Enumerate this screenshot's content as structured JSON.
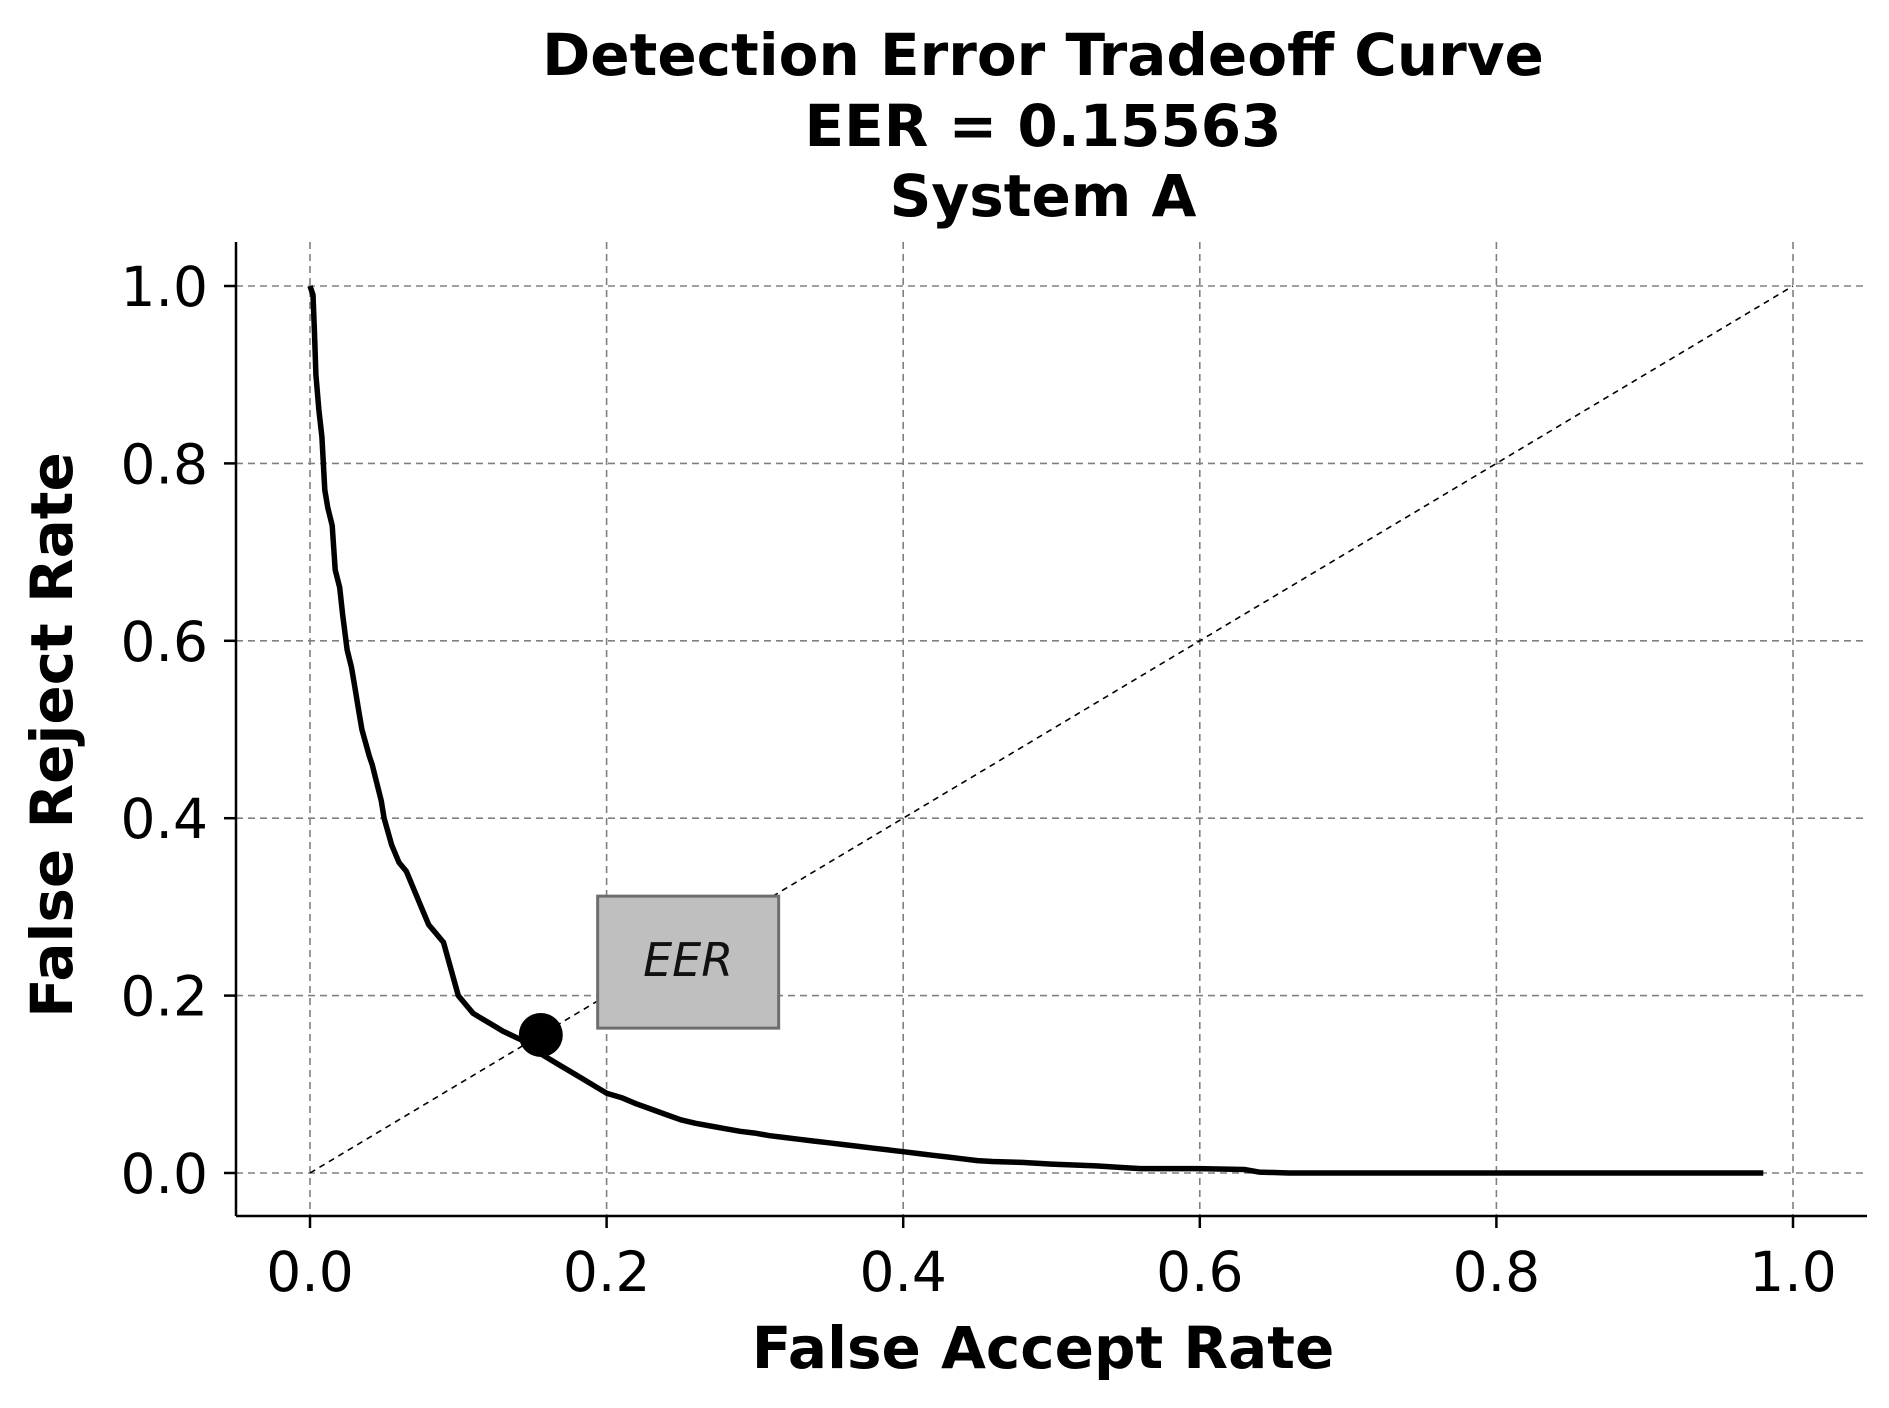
{
  "chart_data": {
    "type": "line",
    "title": [
      "Detection Error Tradeoff Curve",
      "EER = 0.15563",
      "System A"
    ],
    "xlabel": "False Accept Rate",
    "ylabel": "False Reject Rate",
    "xlim": [
      -0.05,
      1.05
    ],
    "ylim": [
      -0.05,
      1.05
    ],
    "xticks": [
      0.0,
      0.2,
      0.4,
      0.6,
      0.8,
      1.0
    ],
    "yticks": [
      0.0,
      0.2,
      0.4,
      0.6,
      0.8,
      1.0
    ],
    "tick_labels_x": [
      "0.0",
      "0.2",
      "0.4",
      "0.6",
      "0.8",
      "1.0"
    ],
    "tick_labels_y": [
      "0.0",
      "0.2",
      "0.4",
      "0.6",
      "0.8",
      "1.0"
    ],
    "grid": true,
    "series": [
      {
        "style": "solid",
        "color": "#000000",
        "x": [
          0.0,
          0.002,
          0.003,
          0.004,
          0.006,
          0.008,
          0.01,
          0.012,
          0.015,
          0.017,
          0.02,
          0.022,
          0.025,
          0.028,
          0.03,
          0.033,
          0.035,
          0.04,
          0.042,
          0.045,
          0.048,
          0.05,
          0.055,
          0.06,
          0.065,
          0.07,
          0.075,
          0.08,
          0.085,
          0.09,
          0.095,
          0.1,
          0.105,
          0.11,
          0.115,
          0.12,
          0.125,
          0.13,
          0.135,
          0.14,
          0.145,
          0.15,
          0.155,
          0.16,
          0.17,
          0.18,
          0.19,
          0.2,
          0.21,
          0.22,
          0.23,
          0.24,
          0.25,
          0.26,
          0.27,
          0.28,
          0.29,
          0.3,
          0.31,
          0.32,
          0.33,
          0.34,
          0.35,
          0.36,
          0.37,
          0.38,
          0.39,
          0.4,
          0.41,
          0.42,
          0.43,
          0.44,
          0.45,
          0.46,
          0.48,
          0.5,
          0.53,
          0.55,
          0.56,
          0.58,
          0.6,
          0.63,
          0.64,
          0.66,
          0.7,
          0.8,
          0.9,
          0.98
        ],
        "y": [
          1.0,
          0.99,
          0.95,
          0.9,
          0.86,
          0.83,
          0.77,
          0.75,
          0.73,
          0.68,
          0.66,
          0.63,
          0.59,
          0.57,
          0.55,
          0.52,
          0.5,
          0.47,
          0.46,
          0.44,
          0.42,
          0.4,
          0.37,
          0.35,
          0.34,
          0.32,
          0.3,
          0.28,
          0.27,
          0.26,
          0.23,
          0.2,
          0.19,
          0.18,
          0.175,
          0.17,
          0.165,
          0.16,
          0.156,
          0.152,
          0.148,
          0.14,
          0.135,
          0.13,
          0.12,
          0.11,
          0.1,
          0.09,
          0.085,
          0.078,
          0.072,
          0.066,
          0.06,
          0.056,
          0.053,
          0.05,
          0.047,
          0.045,
          0.042,
          0.04,
          0.038,
          0.036,
          0.034,
          0.032,
          0.03,
          0.028,
          0.026,
          0.024,
          0.022,
          0.02,
          0.018,
          0.016,
          0.014,
          0.013,
          0.012,
          0.01,
          0.008,
          0.006,
          0.005,
          0.005,
          0.005,
          0.004,
          0.001,
          0.0,
          0.0,
          0.0,
          0.0,
          0.0
        ]
      },
      {
        "style": "dashed",
        "color": "#000000",
        "x": [
          0.0,
          1.0
        ],
        "y": [
          0.0,
          1.0
        ]
      }
    ],
    "eer_point": {
      "x": 0.15563,
      "y": 0.15563
    },
    "annotation": {
      "text": "EER",
      "x": 0.255,
      "y": 0.24
    }
  }
}
